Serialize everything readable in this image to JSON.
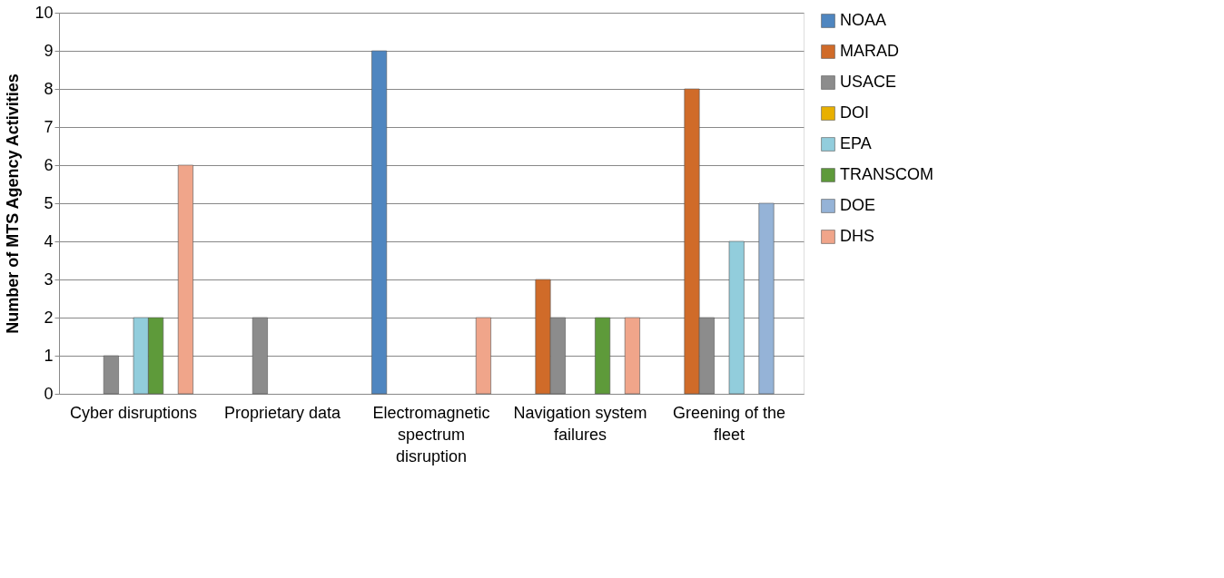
{
  "chart_data": {
    "type": "bar",
    "ylabel": "Number of MTS Agency Activities",
    "categories": [
      "Cyber disruptions",
      "Proprietary data",
      "Electromagnetic spectrum disruption",
      "Navigation system failures",
      "Greening of the fleet"
    ],
    "series": [
      {
        "name": "NOAA",
        "color": "#4f86c0",
        "values": [
          null,
          null,
          9,
          null,
          null
        ]
      },
      {
        "name": "MARAD",
        "color": "#d06b29",
        "values": [
          null,
          null,
          null,
          3,
          8
        ]
      },
      {
        "name": "USACE",
        "color": "#8c8c8c",
        "values": [
          1,
          2,
          null,
          2,
          2
        ]
      },
      {
        "name": "DOI",
        "color": "#e8b000",
        "values": [
          null,
          null,
          null,
          null,
          null
        ]
      },
      {
        "name": "EPA",
        "color": "#92cddc",
        "values": [
          2,
          null,
          null,
          null,
          4
        ]
      },
      {
        "name": "TRANSCOM",
        "color": "#5e9a3a",
        "values": [
          2,
          null,
          null,
          2,
          null
        ]
      },
      {
        "name": "DOE",
        "color": "#95b3d7",
        "values": [
          null,
          null,
          null,
          null,
          5
        ]
      },
      {
        "name": "DHS",
        "color": "#f0a58a",
        "values": [
          6,
          null,
          2,
          2,
          null
        ]
      }
    ],
    "ylim": [
      0,
      10
    ],
    "yticks": [
      0,
      1,
      2,
      3,
      4,
      5,
      6,
      7,
      8,
      9,
      10
    ],
    "grid": "y",
    "legend": "right"
  }
}
